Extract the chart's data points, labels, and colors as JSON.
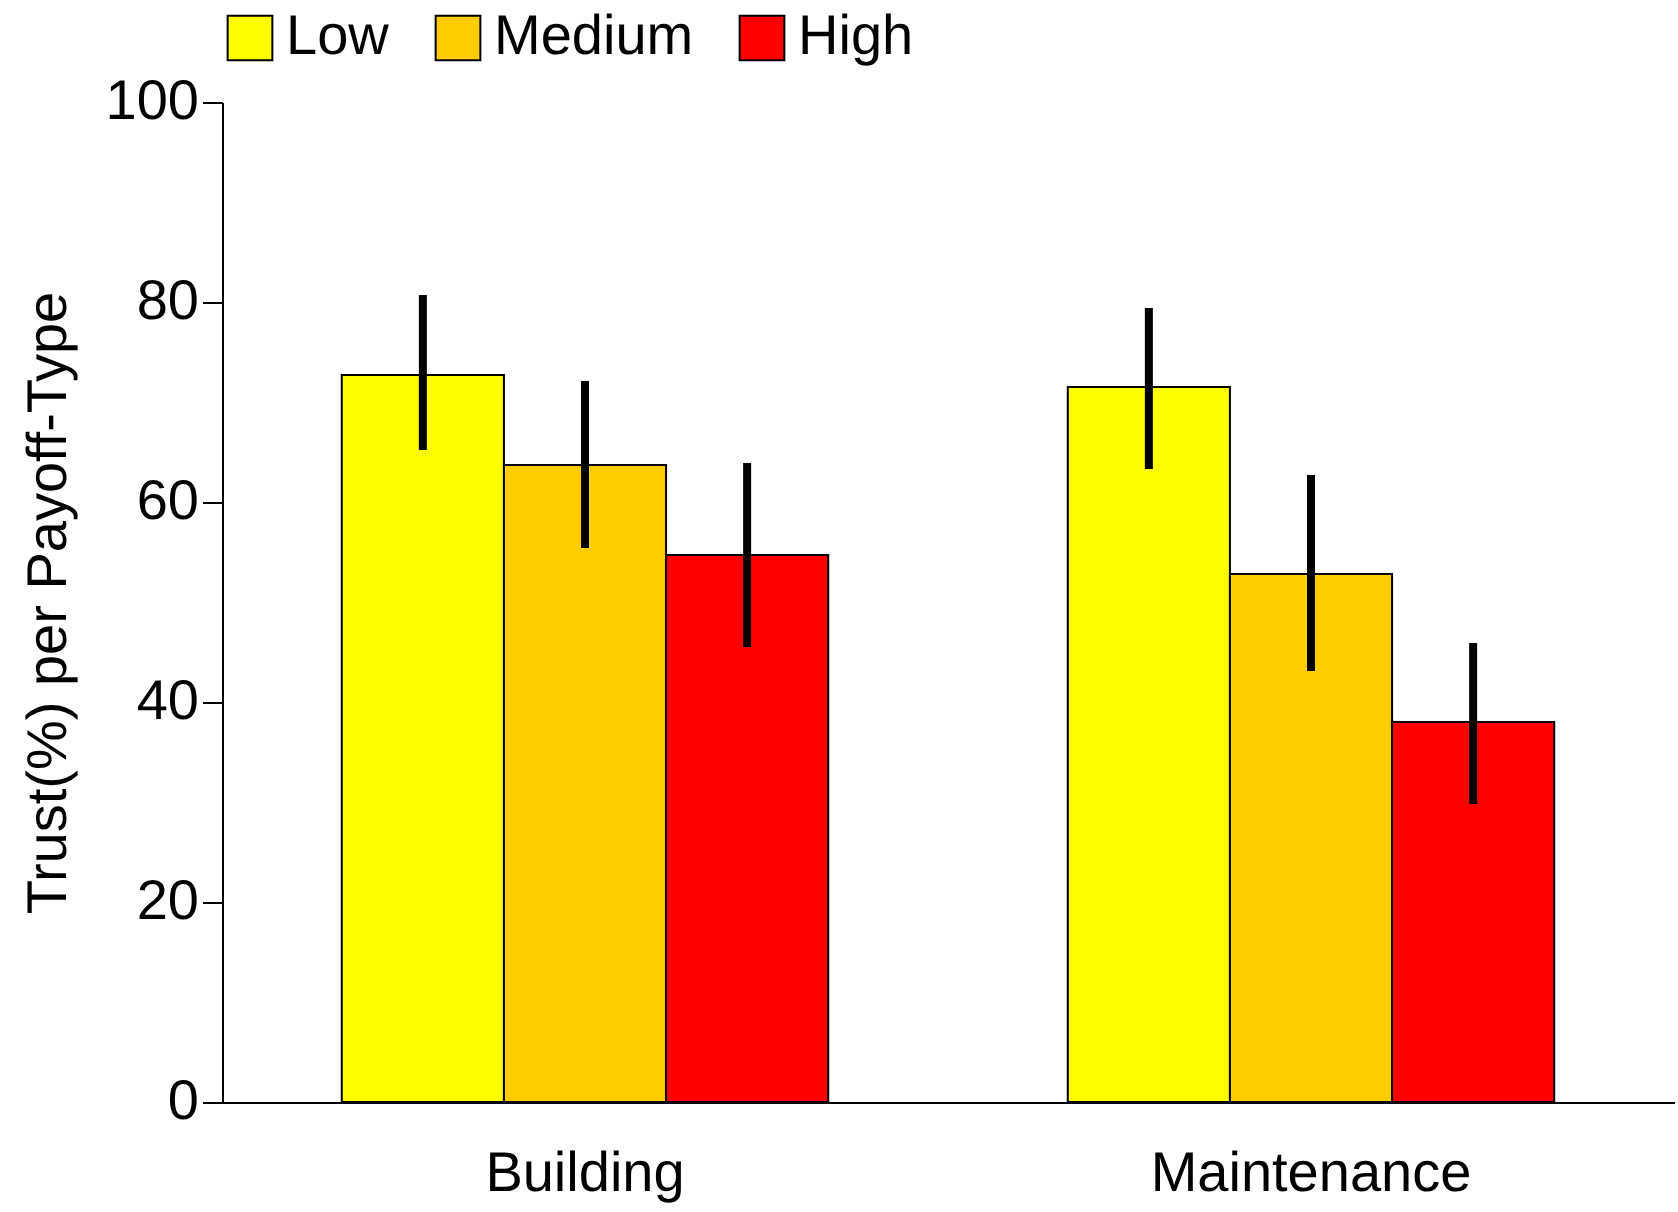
{
  "chart_data": {
    "type": "bar",
    "ylabel": "Trust(%) per Payoff-Type",
    "categories": [
      "Building",
      "Maintenance"
    ],
    "series": [
      {
        "name": "Low",
        "color": "#ffff00",
        "values": [
          72.7,
          71.5
        ],
        "errors": [
          [
            65.2,
            80.7
          ],
          [
            63.3,
            79.4
          ]
        ]
      },
      {
        "name": "Medium",
        "color": "#ffcc00",
        "values": [
          63.7,
          52.8
        ],
        "errors": [
          [
            55.4,
            72.1
          ],
          [
            43.1,
            62.7
          ]
        ]
      },
      {
        "name": "High",
        "color": "#ff0000",
        "values": [
          54.7,
          38.0
        ],
        "errors": [
          [
            45.5,
            63.9
          ],
          [
            29.8,
            45.9
          ]
        ]
      }
    ],
    "ylim": [
      0,
      100
    ],
    "yticks": [
      0,
      20,
      40,
      60,
      80,
      100
    ],
    "grid": false,
    "legend": "top"
  }
}
